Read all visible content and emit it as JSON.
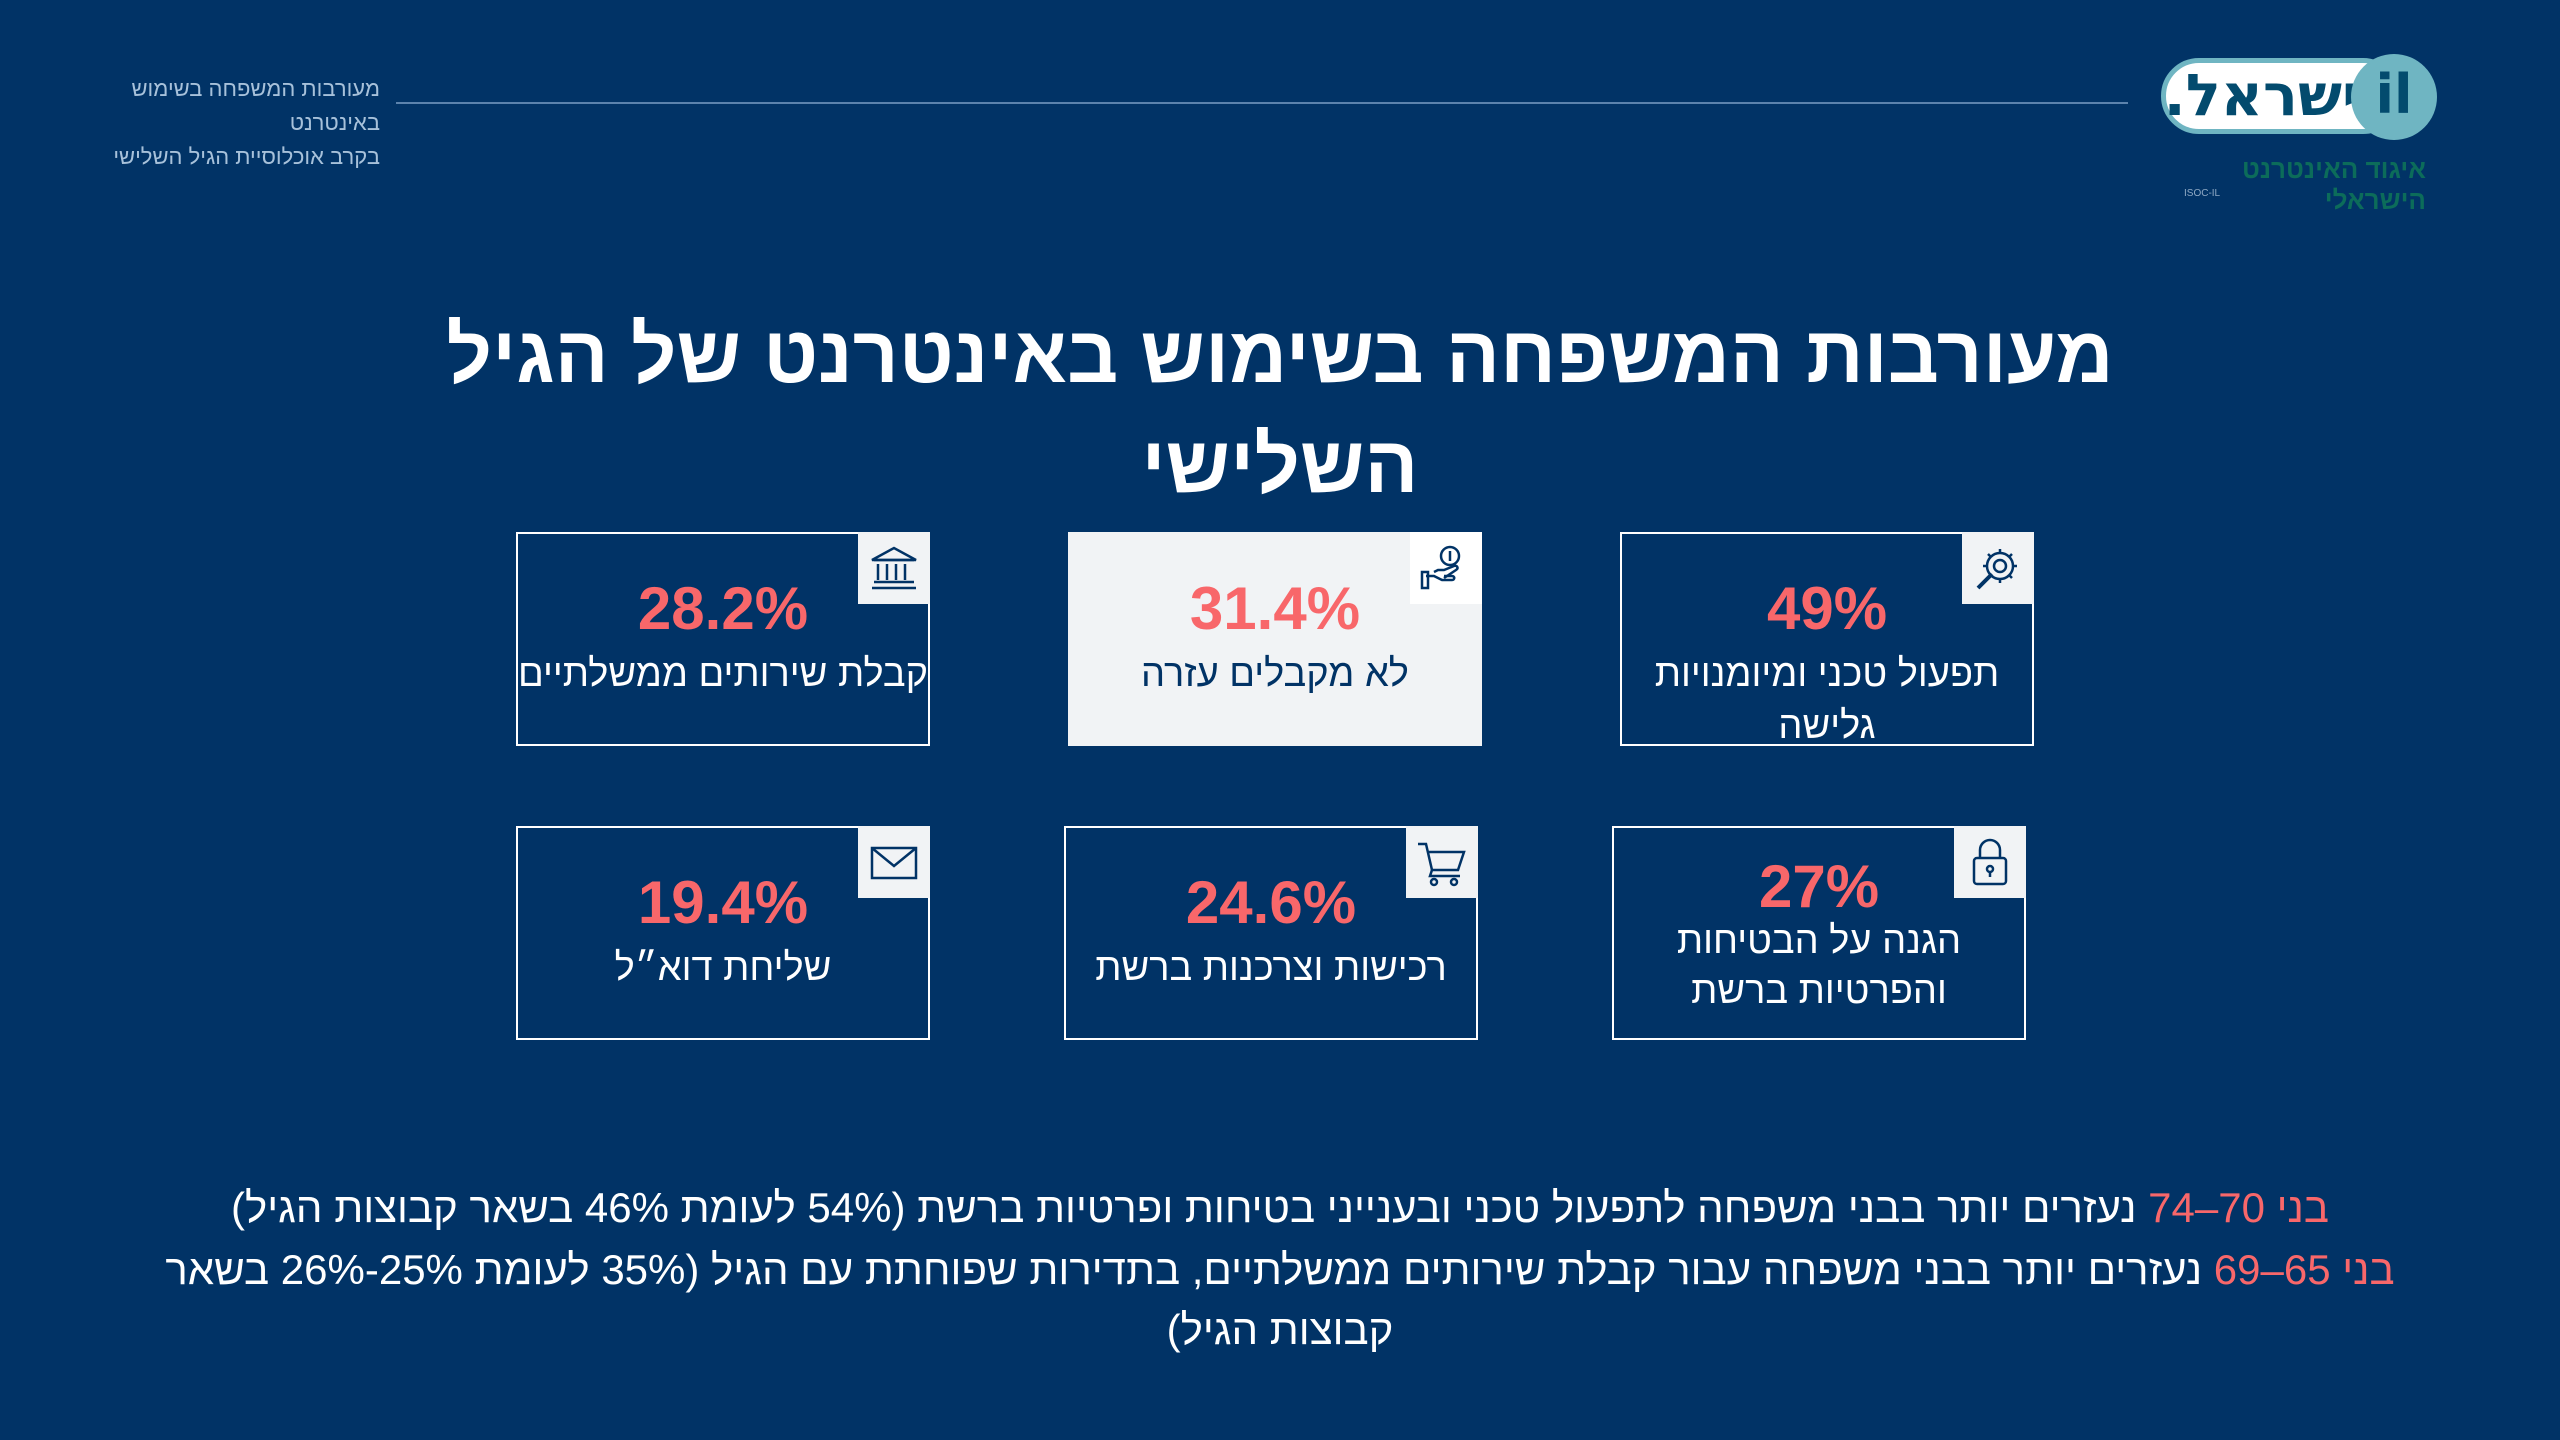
{
  "header": {
    "caption_line1": "מעורבות המשפחה בשימוש באינטרנט",
    "caption_line2": "בקרב אוכלוסיית הגיל השלישי",
    "logo_text": "ישראל.",
    "logo_tld": "il",
    "logo_org": "איגוד האינטרנט הישראלי",
    "logo_small": "ISOC-IL"
  },
  "title": "מעורבות המשפחה בשימוש באינטרנט של הגיל השלישי",
  "cards": [
    {
      "pct": "49%",
      "label": "תפעול טכני ומיומנויות גלישה",
      "icon": "gear-wrench-icon"
    },
    {
      "pct": "31.4%",
      "label": "לא מקבלים עזרה",
      "icon": "hand-coin-icon"
    },
    {
      "pct": "28.2%",
      "label": "קבלת שירותים ממשלתיים",
      "icon": "bank-icon"
    },
    {
      "pct": "27%",
      "label_line1": "הגנה על הבטיחות",
      "label_line2": "והפרטיות ברשת",
      "icon": "lock-icon"
    },
    {
      "pct": "24.6%",
      "label": "רכישות וצרכנות ברשת",
      "icon": "cart-icon"
    },
    {
      "pct": "19.4%",
      "label": "שליחת דוא״ל",
      "icon": "mail-icon"
    }
  ],
  "notes": [
    {
      "age": "בני 70–74",
      "text": "נעזרים יותר בבני משפחה לתפעול טכני ובענייני בטיחות ופרטיות ברשת (54% לעומת 46% בשאר קבוצות הגיל)"
    },
    {
      "age": "בני 65–69",
      "text": "נעזרים יותר בבני משפחה עבור קבלת שירותים ממשלתיים, בתדירות שפוחתת עם הגיל (35% לעומת 25%-26% בשאר קבוצות הגיל)"
    }
  ],
  "colors": {
    "background": "#013366",
    "accent": "#f8676a",
    "light_card": "#f1f3f5",
    "logo_teal": "#6fb5c2"
  }
}
